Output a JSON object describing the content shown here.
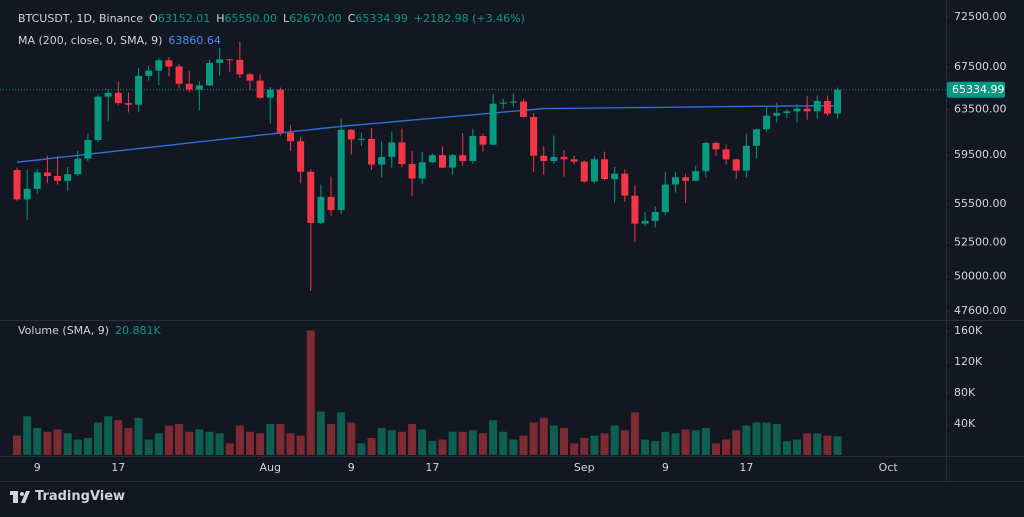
{
  "chart_data": {
    "type": "candlestick",
    "symbol": "BTCUSDT, 1D, Binance",
    "header": [
      {
        "label": "O",
        "text": "63152.01"
      },
      {
        "label": "H",
        "text": "65550.00"
      },
      {
        "label": "L",
        "text": "62670.00"
      },
      {
        "label": "C",
        "text": "65334.99"
      }
    ],
    "change": "+2182.98 (+3.46%)",
    "categories": [
      null,
      null,
      "9",
      null,
      null,
      null,
      null,
      null,
      null,
      null,
      "17",
      null,
      null,
      null,
      null,
      null,
      null,
      null,
      null,
      null,
      null,
      null,
      null,
      null,
      null,
      "Aug",
      null,
      null,
      null,
      null,
      null,
      null,
      null,
      "9",
      null,
      null,
      null,
      null,
      null,
      null,
      null,
      "17",
      null,
      null,
      null,
      null,
      null,
      null,
      null,
      null,
      null,
      null,
      null,
      null,
      null,
      null,
      "Sep",
      null,
      null,
      null,
      null,
      null,
      null,
      null,
      "9",
      null,
      null,
      null,
      null,
      null,
      null,
      null,
      "17",
      null,
      null,
      null,
      null,
      null,
      null,
      null,
      null,
      null,
      null,
      null,
      null,
      null,
      "Oct"
    ],
    "open": [
      58240,
      55850,
      56700,
      58050,
      57750,
      57350,
      57900,
      59200,
      60800,
      64700,
      65050,
      64100,
      63950,
      66650,
      67150,
      68150,
      67550,
      65900,
      65350,
      65750,
      67900,
      68250,
      68200,
      66800,
      66200,
      64600,
      65350,
      61450,
      60700,
      58100,
      54000,
      56050,
      55000,
      61700,
      60850,
      60900,
      58700,
      59350,
      60600,
      58750,
      57550,
      58900,
      59500,
      58450,
      59500,
      59000,
      61150,
      60400,
      64050,
      64150,
      64250,
      62850,
      59450,
      59000,
      59350,
      59150,
      58950,
      57300,
      59150,
      57500,
      57950,
      56150,
      53950,
      54150,
      54850,
      57050,
      57650,
      57350,
      58150,
      60550,
      60000,
      59150,
      58200,
      60300,
      61750,
      62950,
      63200,
      63350,
      63600,
      63350,
      64300,
      63152.01,
      null,
      null,
      null,
      null,
      null
    ],
    "high": [
      58450,
      58250,
      58300,
      59450,
      59400,
      58500,
      59850,
      61400,
      64900,
      65400,
      66100,
      65100,
      67400,
      67600,
      68350,
      68450,
      67800,
      67100,
      66150,
      68200,
      69400,
      68300,
      70000,
      66950,
      66800,
      65600,
      65550,
      62150,
      61100,
      58300,
      57050,
      57700,
      62700,
      61750,
      61450,
      61850,
      60700,
      61550,
      61800,
      59850,
      59800,
      59650,
      60250,
      59600,
      61400,
      61800,
      61400,
      64950,
      64500,
      65000,
      64500,
      63200,
      60250,
      61200,
      59950,
      59450,
      59050,
      59400,
      59800,
      58500,
      58300,
      56950,
      54850,
      55300,
      58100,
      58050,
      57950,
      58600,
      60650,
      60650,
      60400,
      59200,
      61350,
      61800,
      63850,
      64150,
      63550,
      64000,
      64750,
      64800,
      64800,
      65550,
      null,
      null,
      null,
      null,
      null
    ],
    "low": [
      55750,
      54250,
      56300,
      57150,
      57050,
      56550,
      57750,
      59000,
      60650,
      62450,
      63900,
      63250,
      63300,
      66200,
      65800,
      66600,
      65450,
      65100,
      63450,
      65700,
      66700,
      67050,
      66450,
      65300,
      64500,
      62250,
      61200,
      59850,
      57150,
      49000,
      53900,
      54550,
      54700,
      59550,
      60300,
      58250,
      57650,
      58400,
      58450,
      56100,
      57100,
      58800,
      58400,
      57850,
      58600,
      58800,
      59800,
      60350,
      63600,
      63800,
      62800,
      58100,
      57850,
      58800,
      57700,
      58750,
      57200,
      57150,
      57400,
      55600,
      55650,
      52550,
      53750,
      53650,
      54600,
      56400,
      55550,
      57350,
      57650,
      59450,
      58700,
      57500,
      57600,
      59200,
      61550,
      62350,
      62750,
      62350,
      62600,
      62700,
      62950,
      62670,
      null,
      null,
      null,
      null,
      null
    ],
    "close": [
      55850,
      56700,
      58050,
      57750,
      57350,
      57900,
      59200,
      60800,
      64700,
      65050,
      64100,
      63950,
      66650,
      67150,
      68150,
      67550,
      65900,
      65350,
      65750,
      67900,
      68250,
      68200,
      66800,
      66200,
      64600,
      65350,
      61450,
      60700,
      58100,
      54000,
      56050,
      55000,
      61700,
      60850,
      60900,
      58700,
      59350,
      60600,
      58750,
      57550,
      58900,
      59500,
      58450,
      59500,
      59000,
      61150,
      60400,
      64050,
      64150,
      64250,
      62850,
      59450,
      59000,
      59350,
      59150,
      58950,
      57300,
      59150,
      57500,
      57950,
      56150,
      53950,
      54150,
      54850,
      57050,
      57650,
      57350,
      58150,
      60550,
      60000,
      59150,
      58200,
      60300,
      61750,
      62950,
      63200,
      63350,
      63600,
      63350,
      64300,
      63150,
      65334.99,
      null,
      null,
      null,
      null,
      null
    ],
    "up_color": "#089981",
    "down_color": "#f23645",
    "ma": {
      "name": "MA (200, close, 0, SMA, 9)",
      "value_text": "63860.64",
      "color": "#2f6fd6",
      "values": [
        58900,
        59000,
        59090,
        59190,
        59290,
        59380,
        59480,
        59580,
        59680,
        59770,
        59870,
        59970,
        60060,
        60160,
        60260,
        60350,
        60450,
        60550,
        60650,
        60740,
        60840,
        60940,
        61030,
        61130,
        61230,
        61320,
        61420,
        61520,
        61620,
        61710,
        61810,
        61910,
        62000,
        62080,
        62160,
        62240,
        62320,
        62400,
        62480,
        62560,
        62640,
        62720,
        62800,
        62880,
        62960,
        63040,
        63120,
        63200,
        63280,
        63360,
        63440,
        63520,
        63600,
        63610,
        63620,
        63630,
        63640,
        63650,
        63660,
        63670,
        63680,
        63690,
        63700,
        63710,
        63720,
        63730,
        63740,
        63750,
        63760,
        63770,
        63780,
        63790,
        63800,
        63810,
        63820,
        63830,
        63840,
        63845,
        63850,
        63855,
        63858,
        63860,
        null,
        null,
        null,
        null,
        null
      ]
    },
    "volume": {
      "name": "Volume (SMA, 9)",
      "value_text": "20.881K",
      "up_color": "#0f5e52",
      "down_color": "#7d2a33",
      "values": [
        25000,
        50000,
        35000,
        30000,
        33000,
        28000,
        20000,
        22000,
        42000,
        50000,
        45000,
        35000,
        48000,
        20000,
        28000,
        38000,
        40000,
        30000,
        33000,
        30000,
        28000,
        15000,
        38000,
        30000,
        28000,
        40000,
        40000,
        28000,
        25000,
        161000,
        56000,
        40000,
        55000,
        42000,
        15000,
        22000,
        35000,
        32000,
        30000,
        40000,
        33000,
        18000,
        20000,
        30000,
        30000,
        32000,
        28000,
        45000,
        30000,
        20000,
        25000,
        42000,
        48000,
        38000,
        35000,
        15000,
        22000,
        25000,
        28000,
        38000,
        32000,
        55000,
        20000,
        18000,
        30000,
        28000,
        33000,
        32000,
        35000,
        15000,
        20000,
        32000,
        38000,
        42000,
        42000,
        40000,
        18000,
        20000,
        28000,
        28000,
        25000,
        24000,
        null,
        null,
        null,
        null,
        null
      ],
      "ylim": [
        0,
        168000
      ],
      "yticks": [
        {
          "value": 40000,
          "label": "40K"
        },
        {
          "value": 80000,
          "label": "80K"
        },
        {
          "value": 120000,
          "label": "120K"
        },
        {
          "value": 160000,
          "label": "160K"
        }
      ]
    },
    "ylim": [
      47130,
      73450
    ],
    "log_scale": true,
    "yticks": [
      {
        "value": 47600,
        "label": "47600.00"
      },
      {
        "value": 50000,
        "label": "50000.00"
      },
      {
        "value": 52500,
        "label": "52500.00"
      },
      {
        "value": 55500,
        "label": "55500.00"
      },
      {
        "value": 59500,
        "label": "59500.00"
      },
      {
        "value": 63500,
        "label": "63500.00"
      },
      {
        "value": 67500,
        "label": "67500.00"
      },
      {
        "value": 72500,
        "label": "72500.00"
      }
    ],
    "branding": "TradingView"
  }
}
